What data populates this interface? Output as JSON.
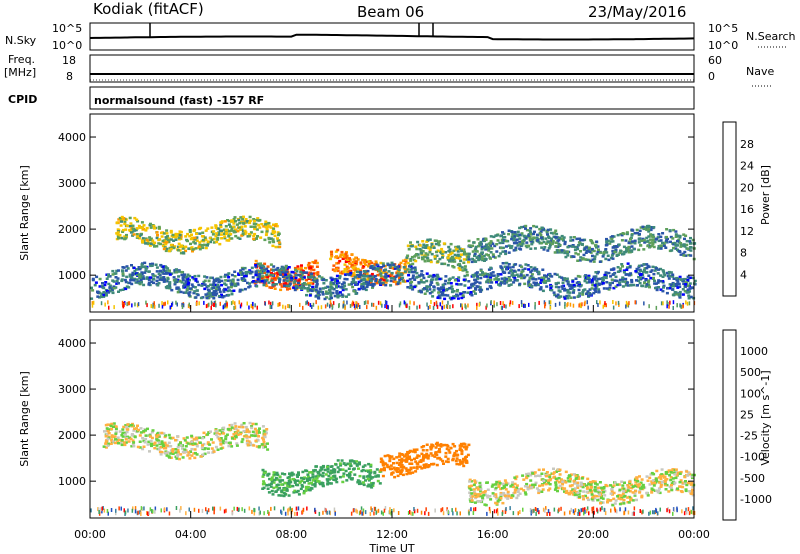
{
  "header": {
    "radar": "Kodiak (fitACF)",
    "beam": "Beam 06",
    "date": "23/May/2016"
  },
  "panels": {
    "nsky": {
      "label": "N.Sky",
      "top_tick": "10^5",
      "bottom_tick": "10^0"
    },
    "nsearch": {
      "label": "N.Search",
      "top_tick": "10^5",
      "bottom_tick": "10^0"
    },
    "freq": {
      "label_line1": "Freq.",
      "label_line2": "[MHz]",
      "top_tick": "18",
      "bottom_tick": "8"
    },
    "nave": {
      "label": "Nave",
      "top_tick": "60",
      "bottom_tick": "0"
    },
    "cpid": {
      "label": "CPID",
      "text": "normalsound (fast) -157 RF"
    }
  },
  "chart_data": [
    {
      "type": "heatmap",
      "name": "power",
      "ylabel": "Slant Range [km]",
      "yticks": [
        "4000",
        "3000",
        "2000",
        "1000"
      ],
      "ylim": [
        200,
        4500
      ],
      "xlim": [
        "00:00",
        "24:00"
      ],
      "colorbar": {
        "label": "Power [dB]",
        "ticks": [
          "28",
          "24",
          "20",
          "16",
          "12",
          "8",
          "4"
        ],
        "colors": [
          "#0000ff",
          "#2a55a8",
          "#3f8a7a",
          "#5ea05a",
          "#f5c400",
          "#ff9a00",
          "#ff5a00",
          "#ff0000"
        ]
      },
      "features": [
        {
          "t_start_h": 1.0,
          "t_end_h": 7.5,
          "range_km": 1900,
          "intensity": 16
        },
        {
          "t_start_h": 6.5,
          "t_end_h": 9.0,
          "range_km": 1100,
          "intensity": 26
        },
        {
          "t_start_h": 9.5,
          "t_end_h": 12.5,
          "range_km": 1200,
          "intensity": 24
        },
        {
          "t_start_h": 12.5,
          "t_end_h": 15.0,
          "range_km": 1400,
          "intensity": 14
        },
        {
          "t_start_h": 15.0,
          "t_end_h": 24.0,
          "range_km": 1700,
          "intensity": 10
        },
        {
          "t_start_h": 0.0,
          "t_end_h": 24.0,
          "range_km": 900,
          "intensity": 8
        }
      ]
    },
    {
      "type": "heatmap",
      "name": "velocity",
      "ylabel": "Slant Range [km]",
      "xlabel": "Time UT",
      "yticks": [
        "4000",
        "3000",
        "2000",
        "1000"
      ],
      "ylim": [
        200,
        4500
      ],
      "xticks": [
        "00:00",
        "04:00",
        "08:00",
        "12:00",
        "16:00",
        "20:00",
        "00:00"
      ],
      "colorbar": {
        "label": "Velocity [m s^-1]",
        "ticks": [
          "1000",
          "500",
          "100",
          "25",
          "-25",
          "-100",
          "-500",
          "-1000"
        ],
        "colors": [
          "#2050c0",
          "#3a7fa0",
          "#3aa060",
          "#66d040",
          "#c8c8c0",
          "#ffb040",
          "#ff8000",
          "#ff4000",
          "#ff0000"
        ]
      },
      "features": [
        {
          "t_start_h": 0.5,
          "t_end_h": 7.0,
          "range_km": 1900,
          "velocity": 0
        },
        {
          "t_start_h": 6.8,
          "t_end_h": 11.5,
          "range_km": 1100,
          "velocity": 150
        },
        {
          "t_start_h": 11.5,
          "t_end_h": 15.0,
          "range_km": 1500,
          "velocity": -200
        },
        {
          "t_start_h": 15.0,
          "t_end_h": 24.0,
          "range_km": 900,
          "velocity": 0
        }
      ]
    }
  ]
}
